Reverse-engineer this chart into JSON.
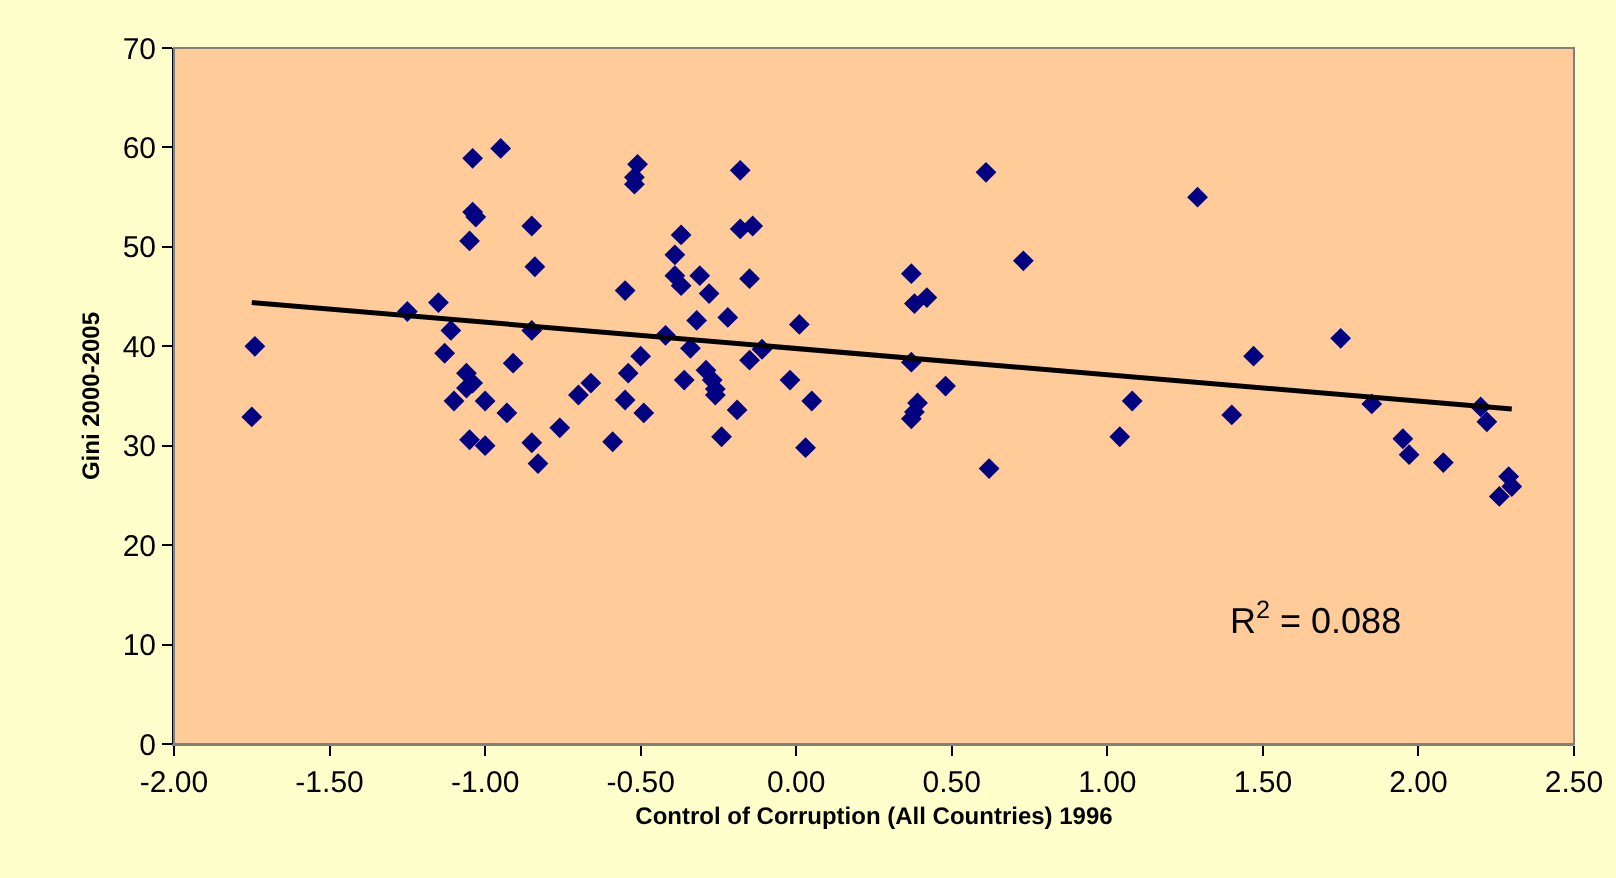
{
  "chart_data": {
    "type": "scatter",
    "xlabel": "Control of Corruption (All Countries) 1996",
    "ylabel": "Gini 2000-2005",
    "annotations": [
      "R$^{2}$ = 0.088"
    ],
    "xlim": [
      -2,
      2.5
    ],
    "ylim": [
      0,
      70
    ],
    "xticks": [
      {
        "value": -2,
        "label": "-2.00"
      },
      {
        "value": -1.5,
        "label": "-1.50"
      },
      {
        "value": -1,
        "label": "-1.00"
      },
      {
        "value": -0.5,
        "label": "-0.50"
      },
      {
        "value": 0,
        "label": "0.00"
      },
      {
        "value": 0.5,
        "label": "0.50"
      },
      {
        "value": 1,
        "label": "1.00"
      },
      {
        "value": 1.5,
        "label": "1.50"
      },
      {
        "value": 2,
        "label": "2.00"
      },
      {
        "value": 2.5,
        "label": "2.50"
      }
    ],
    "yticks": [
      0,
      10,
      20,
      30,
      40,
      50,
      60,
      70
    ],
    "series": [
      {
        "marker": "diamond",
        "color": "#000080",
        "x": [
          -1.74,
          -1.75,
          -1.25,
          -1.15,
          -1.11,
          -1.13,
          -1.1,
          -1.06,
          -1.04,
          -1.06,
          -1.0,
          -1.05,
          -1.0,
          -1.04,
          -1.04,
          -1.03,
          -1.05,
          -0.95,
          -0.93,
          -0.91,
          -0.85,
          -0.84,
          -0.85,
          -0.85,
          -0.83,
          -0.76,
          -0.7,
          -0.66,
          -0.59,
          -0.55,
          -0.54,
          -0.55,
          -0.51,
          -0.52,
          -0.52,
          -0.5,
          -0.49,
          -0.42,
          -0.37,
          -0.39,
          -0.39,
          -0.37,
          -0.31,
          -0.28,
          -0.32,
          -0.34,
          -0.36,
          -0.29,
          -0.27,
          -0.26,
          -0.26,
          -0.19,
          -0.24,
          -0.22,
          -0.18,
          -0.18,
          -0.14,
          -0.15,
          -0.15,
          -0.11,
          0.01,
          -0.02,
          0.05,
          0.03,
          0.37,
          0.38,
          0.42,
          0.37,
          0.39,
          0.38,
          0.37,
          0.48,
          0.61,
          0.62,
          0.73,
          1.04,
          1.08,
          1.29,
          1.4,
          1.47,
          1.75,
          1.85,
          1.95,
          1.97,
          2.08,
          2.2,
          2.22,
          2.29,
          2.3,
          2.26
        ],
        "values": [
          40,
          32.9,
          43.5,
          44.4,
          41.6,
          39.3,
          34.5,
          37.3,
          36.3,
          35.8,
          34.5,
          30.6,
          30.0,
          58.9,
          53.5,
          53.0,
          50.6,
          59.9,
          33.3,
          38.3,
          52.1,
          48.0,
          41.6,
          30.3,
          28.2,
          31.8,
          35.1,
          36.3,
          30.4,
          34.6,
          37.3,
          45.6,
          58.3,
          57.0,
          56.3,
          39.0,
          33.3,
          41.1,
          51.2,
          49.2,
          47.1,
          46.1,
          47.1,
          45.3,
          42.6,
          39.8,
          36.6,
          37.6,
          36.6,
          35.7,
          35.1,
          33.6,
          30.9,
          42.9,
          57.7,
          51.8,
          52.1,
          46.8,
          38.6,
          39.7,
          42.2,
          36.6,
          34.5,
          29.8,
          47.3,
          44.3,
          44.9,
          38.4,
          34.3,
          33.4,
          32.7,
          36.0,
          57.5,
          27.7,
          48.6,
          30.9,
          34.5,
          55.0,
          33.1,
          39.0,
          40.8,
          34.2,
          30.7,
          29.1,
          28.3,
          33.9,
          32.4,
          26.9,
          25.9,
          24.9
        ]
      },
      {
        "type": "line",
        "color": "#000000",
        "x": [
          -1.75,
          2.3
        ],
        "values": [
          44.4,
          33.7
        ]
      }
    ]
  }
}
